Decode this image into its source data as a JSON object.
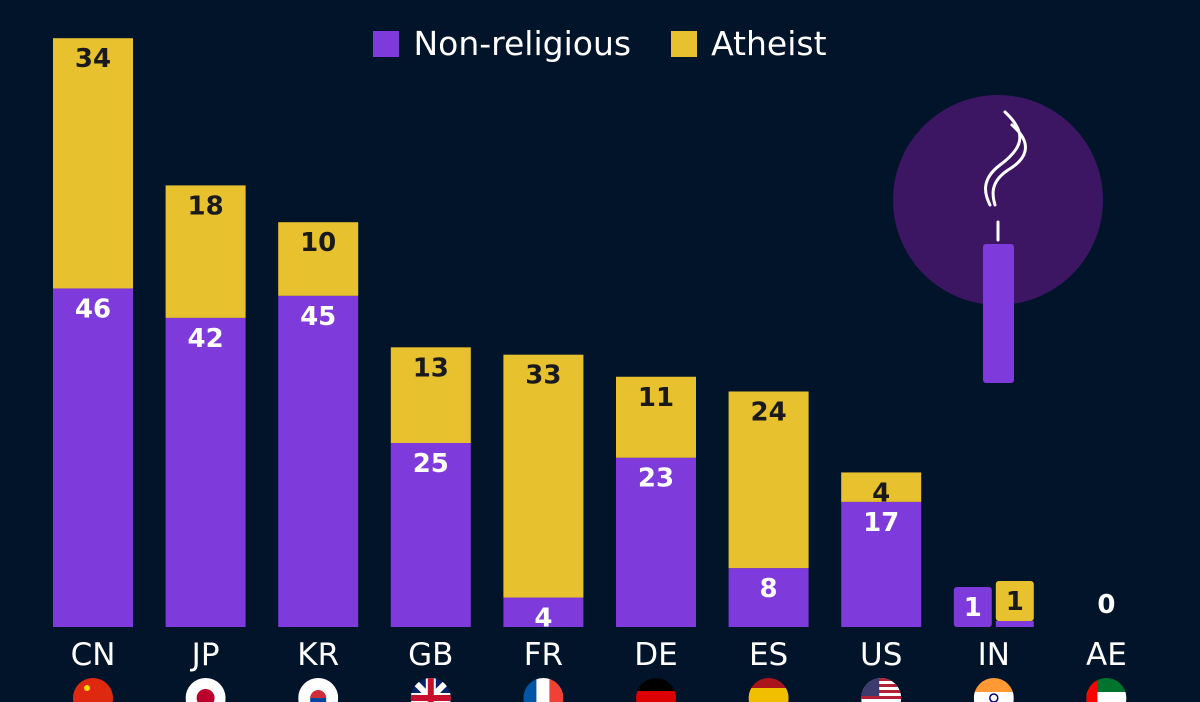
{
  "legend": {
    "nonreligious_label": "Non-religious",
    "atheist_label": "Atheist"
  },
  "colors": {
    "background": "#01142a",
    "nonreligious": "#7e3ada",
    "atheist": "#e8c22e",
    "circle": "#3c1663",
    "candle": "#7e3ada"
  },
  "chart_data": {
    "type": "bar",
    "stacked": true,
    "categories": [
      "CN",
      "JP",
      "KR",
      "GB",
      "FR",
      "DE",
      "ES",
      "US",
      "IN",
      "AE"
    ],
    "series": [
      {
        "name": "Non-religious",
        "values": [
          46,
          42,
          45,
          25,
          4,
          23,
          8,
          17,
          1,
          0
        ]
      },
      {
        "name": "Atheist",
        "values": [
          34,
          18,
          10,
          13,
          33,
          11,
          24,
          4,
          1,
          0
        ]
      }
    ],
    "value_labels": {
      "nonreligious": [
        "46",
        "42",
        "45",
        "25",
        "4",
        "23",
        "8",
        "17",
        "1",
        ""
      ],
      "atheist": [
        "34",
        "18",
        "10",
        "13",
        "33",
        "11",
        "24",
        "4",
        "1",
        "0"
      ]
    },
    "legend_position": "top-center",
    "grid": false
  },
  "flags": [
    "china-flag",
    "japan-flag",
    "south-korea-flag",
    "uk-flag",
    "france-flag",
    "germany-flag",
    "spain-flag",
    "usa-flag",
    "india-flag",
    "uae-flag"
  ],
  "illustration": "candle-icon"
}
